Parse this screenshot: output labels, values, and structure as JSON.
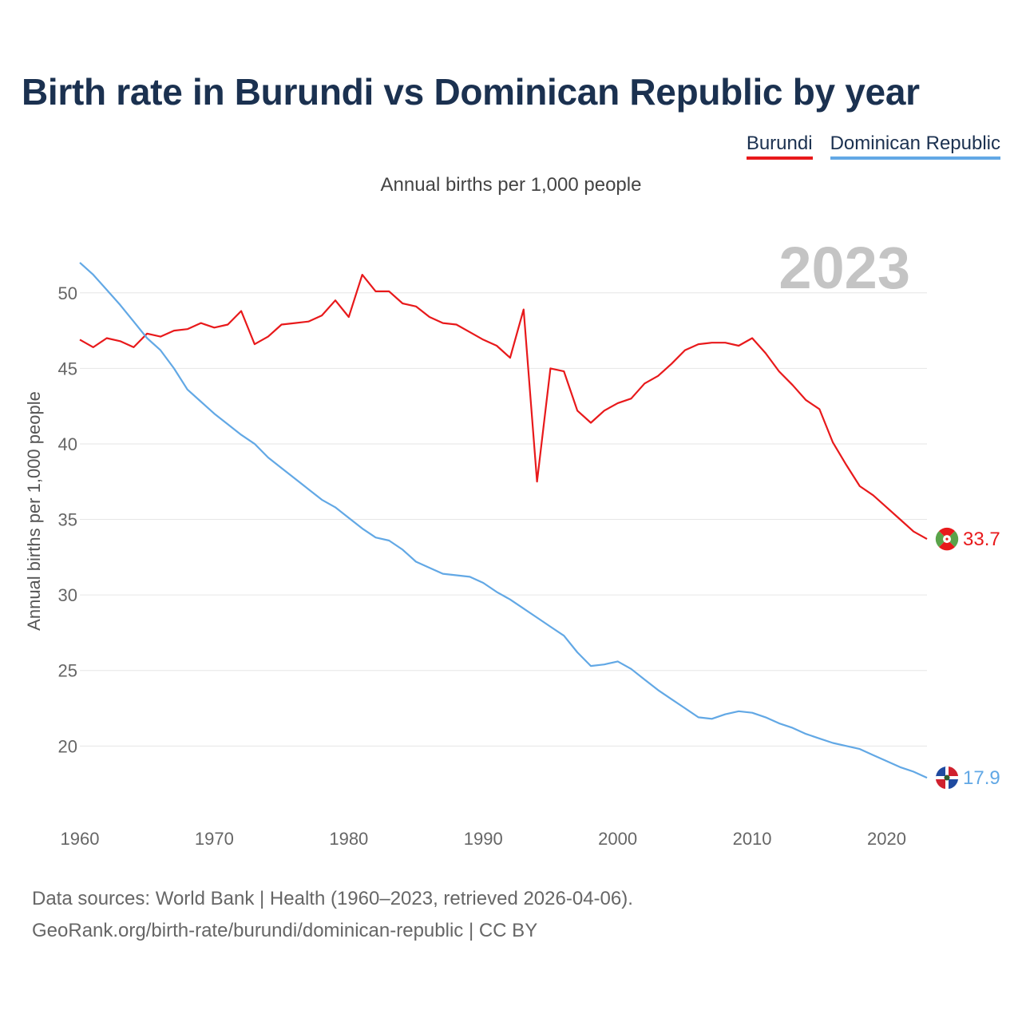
{
  "title": "Birth rate in Burundi vs Dominican Republic by year",
  "subtitle": "Annual births per 1,000 people",
  "legend": [
    "Burundi",
    "Dominican Republic"
  ],
  "footer": {
    "line1": "Data sources: World Bank | Health (1960–2023, retrieved 2026-04-06).",
    "line2": "GeoRank.org/birth-rate/burundi/dominican-republic | CC BY"
  },
  "chart_data": {
    "type": "line",
    "title": "Birth rate in Burundi vs Dominican Republic by year",
    "subtitle": "Annual births per 1,000 people",
    "xlabel": "",
    "ylabel": "Annual births per 1,000 people",
    "year_label": "2023",
    "xlim": [
      1960,
      2023
    ],
    "ylim": [
      16,
      53
    ],
    "yticks": [
      20,
      25,
      30,
      35,
      40,
      45,
      50
    ],
    "xticks": [
      1960,
      1970,
      1980,
      1990,
      2000,
      2010,
      2020
    ],
    "grid": true,
    "legend_position": "top-right",
    "x": [
      1960,
      1961,
      1962,
      1963,
      1964,
      1965,
      1966,
      1967,
      1968,
      1969,
      1970,
      1971,
      1972,
      1973,
      1974,
      1975,
      1976,
      1977,
      1978,
      1979,
      1980,
      1981,
      1982,
      1983,
      1984,
      1985,
      1986,
      1987,
      1988,
      1989,
      1990,
      1991,
      1992,
      1993,
      1994,
      1995,
      1996,
      1997,
      1998,
      1999,
      2000,
      2001,
      2002,
      2003,
      2004,
      2005,
      2006,
      2007,
      2008,
      2009,
      2010,
      2011,
      2012,
      2013,
      2014,
      2015,
      2016,
      2017,
      2018,
      2019,
      2020,
      2021,
      2022,
      2023
    ],
    "series": [
      {
        "name": "Burundi",
        "color": "#e8191b",
        "end_label": "33.7",
        "values": [
          46.9,
          46.4,
          47.0,
          46.8,
          46.4,
          47.3,
          47.1,
          47.5,
          47.6,
          48.0,
          47.7,
          47.9,
          48.8,
          46.6,
          47.1,
          47.9,
          48.0,
          48.1,
          48.5,
          49.5,
          48.4,
          51.2,
          50.1,
          50.1,
          49.3,
          49.1,
          48.4,
          48.0,
          47.9,
          47.4,
          46.9,
          46.5,
          45.7,
          48.9,
          37.5,
          45.0,
          44.8,
          42.2,
          41.4,
          42.2,
          42.7,
          43.0,
          44.0,
          44.5,
          45.3,
          46.2,
          46.6,
          46.7,
          46.7,
          46.5,
          47.0,
          46.0,
          44.8,
          43.9,
          42.9,
          42.3,
          40.1,
          38.6,
          37.2,
          36.6,
          35.8,
          35.0,
          34.2,
          33.7
        ]
      },
      {
        "name": "Dominican Republic",
        "color": "#62a8e5",
        "end_label": "17.9",
        "values": [
          52.0,
          51.2,
          50.2,
          49.2,
          48.1,
          47.0,
          46.2,
          45.0,
          43.6,
          42.8,
          42.0,
          41.3,
          40.6,
          40.0,
          39.1,
          38.4,
          37.7,
          37.0,
          36.3,
          35.8,
          35.1,
          34.4,
          33.8,
          33.6,
          33.0,
          32.2,
          31.8,
          31.4,
          31.3,
          31.2,
          30.8,
          30.2,
          29.7,
          29.1,
          28.5,
          27.9,
          27.3,
          26.2,
          25.3,
          25.4,
          25.6,
          25.1,
          24.4,
          23.7,
          23.1,
          22.5,
          21.9,
          21.8,
          22.1,
          22.3,
          22.2,
          21.9,
          21.5,
          21.2,
          20.8,
          20.5,
          20.2,
          20.0,
          19.8,
          19.4,
          19.0,
          18.6,
          18.3,
          17.9
        ]
      }
    ]
  }
}
